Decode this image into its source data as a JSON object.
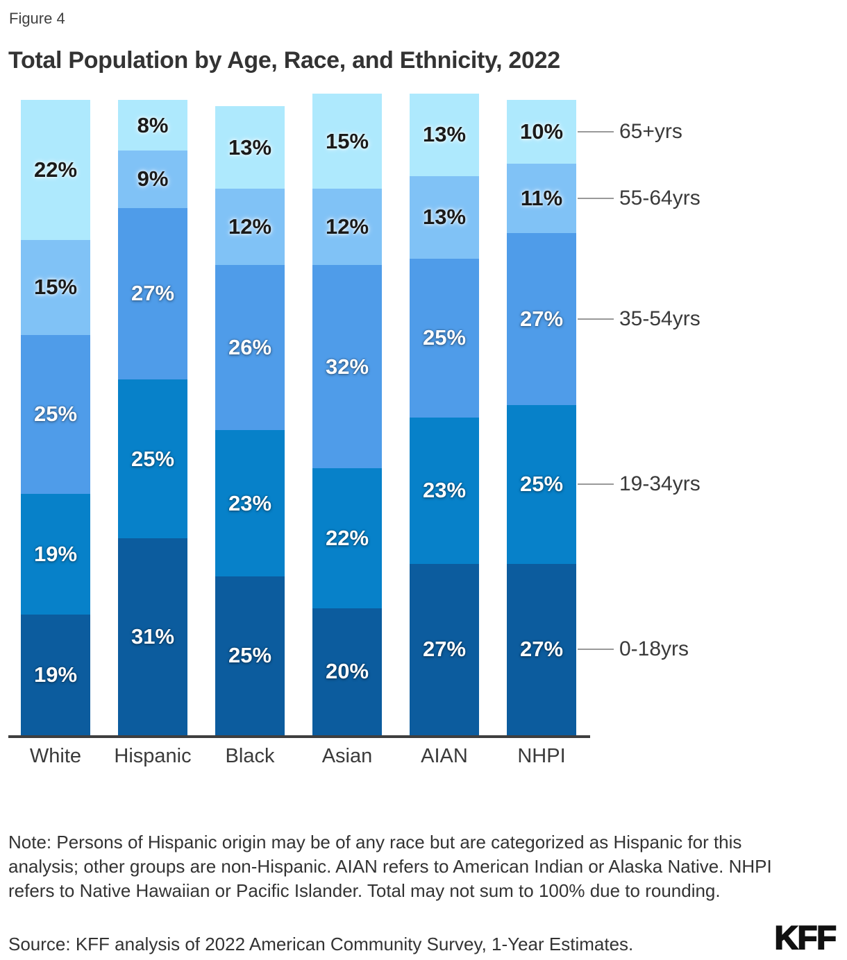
{
  "figure_label": "Figure 4",
  "title": "Total Population by Age, Race, and Ethnicity, 2022",
  "note": "Note: Persons of Hispanic origin may be of any race but are categorized as Hispanic for this analysis; other groups are non-Hispanic. AIAN refers to American Indian or Alaska Native. NHPI refers to Native Hawaiian or Pacific Islander. Total may not sum to 100% due to rounding.",
  "source": "Source: KFF analysis of 2022 American Community Survey, 1-Year Estimates.",
  "logo": "KFF",
  "chart_data": {
    "type": "bar",
    "stacked": true,
    "title": "Total Population by Age, Race, and Ethnicity, 2022",
    "xlabel": "",
    "ylabel": "",
    "value_suffix": "%",
    "grid": false,
    "legend_position": "right-of-last-bar",
    "categories": [
      "White",
      "Hispanic",
      "Black",
      "Asian",
      "AIAN",
      "NHPI"
    ],
    "series": [
      {
        "name": "0-18yrs",
        "color": "#0c5c9e",
        "label_style": "light",
        "values": [
          19,
          31,
          25,
          20,
          27,
          27
        ]
      },
      {
        "name": "19-34yrs",
        "color": "#0781c9",
        "label_style": "light",
        "values": [
          19,
          25,
          23,
          22,
          23,
          25
        ]
      },
      {
        "name": "35-54yrs",
        "color": "#4f9ce9",
        "label_style": "light",
        "values": [
          25,
          27,
          26,
          32,
          25,
          27
        ]
      },
      {
        "name": "55-64yrs",
        "color": "#80c2f6",
        "label_style": "dark",
        "values": [
          15,
          9,
          12,
          12,
          13,
          11
        ]
      },
      {
        "name": "65+yrs",
        "color": "#aee9fd",
        "label_style": "dark",
        "values": [
          22,
          8,
          13,
          15,
          13,
          10
        ]
      }
    ],
    "colors": {
      "axis_line": "#3f3f3f",
      "tick_line": "#999999",
      "tick_label_text": "#3a3a3a"
    }
  }
}
